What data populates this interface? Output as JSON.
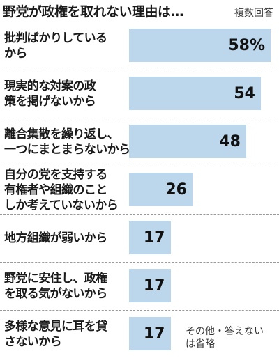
{
  "chart_data": {
    "type": "bar",
    "title": "野党が政権を取れない理由は…",
    "note": "複数回答",
    "categories": [
      [
        "批判ばかりしている",
        "から"
      ],
      [
        "現実的な対案の政",
        "策を掲げないから"
      ],
      [
        "離合集散を繰り返し、",
        "一つにまとまらないから"
      ],
      [
        "自分の党を支持する",
        "有権者や組織のこと",
        "しか考えていないから"
      ],
      [
        "地方組織が弱いから"
      ],
      [
        "野党に安住し、政権",
        "を取る気がないから"
      ],
      [
        "多様な意見に耳を貸",
        "さないから"
      ]
    ],
    "values": [
      58,
      54,
      48,
      26,
      17,
      17,
      17
    ],
    "value_labels": [
      "58%",
      "54",
      "48",
      "26",
      "17",
      "17",
      "17"
    ],
    "bar_color": "#bcd7ec",
    "footnote": [
      "その他・答えない",
      "は省略"
    ]
  }
}
